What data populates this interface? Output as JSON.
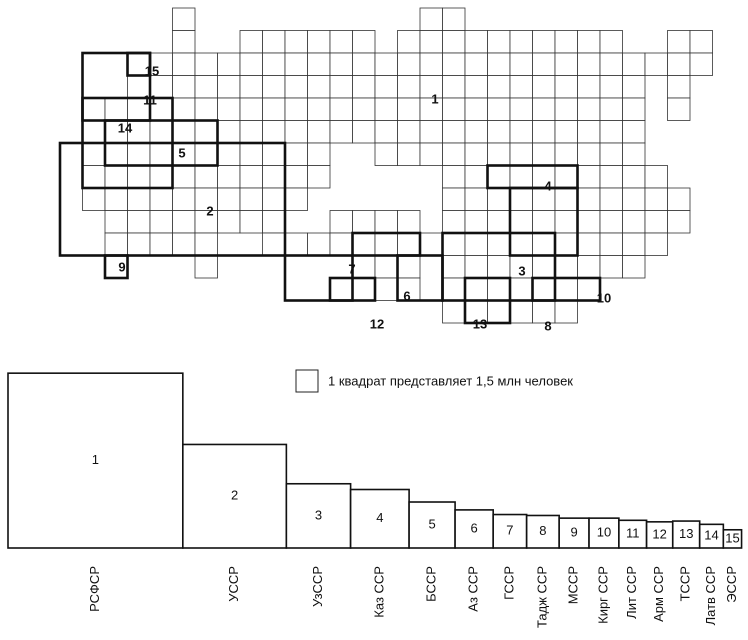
{
  "chart_data": {
    "type": "square",
    "legend": "1 квадрат представляет 1,5 млн  человек",
    "numbers": [
      "1",
      "2",
      "3",
      "4",
      "5",
      "6",
      "7",
      "8",
      "9",
      "10",
      "11",
      "12",
      "13",
      "14",
      "15"
    ],
    "categories": [
      "РСФСР",
      "УССР",
      "УзССР",
      "Каз ССР",
      "БССР",
      "Аз ССР",
      "ГССР",
      "Тадж ССР",
      "МССР",
      "Кирг ССР",
      "Лит ССР",
      "Арм ССР",
      "ТССР",
      "Латв ССР",
      "ЭССР"
    ],
    "values": [
      147.4,
      51.7,
      19.9,
      16.5,
      10.2,
      7.0,
      5.4,
      5.1,
      4.3,
      4.3,
      3.7,
      3.3,
      3.5,
      2.7,
      1.6
    ],
    "color": "#ffffff"
  }
}
